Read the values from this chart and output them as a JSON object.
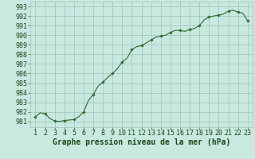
{
  "x": [
    1,
    1.5,
    2,
    2.5,
    3,
    3.5,
    4,
    4.5,
    5,
    5.5,
    6,
    6.5,
    7,
    7.5,
    8,
    8.5,
    9,
    9.5,
    10,
    10.5,
    11,
    11.5,
    12,
    12.5,
    13,
    13.5,
    14,
    14.5,
    15,
    15.5,
    16,
    16.5,
    17,
    17.5,
    18,
    18.5,
    19,
    19.5,
    20,
    20.5,
    21,
    21.5,
    22,
    22.5,
    23
  ],
  "y": [
    981.5,
    981.9,
    981.8,
    981.3,
    981.05,
    981.0,
    981.1,
    981.15,
    981.2,
    981.5,
    982.0,
    983.2,
    983.8,
    984.7,
    985.1,
    985.6,
    986.0,
    986.5,
    987.2,
    987.6,
    988.5,
    988.8,
    988.9,
    989.2,
    989.5,
    989.8,
    989.9,
    990.0,
    990.3,
    990.5,
    990.5,
    990.4,
    990.6,
    990.7,
    991.0,
    991.6,
    991.9,
    992.0,
    992.1,
    992.2,
    992.5,
    992.6,
    992.4,
    992.3,
    991.5
  ],
  "x_markers": [
    1,
    2,
    3,
    4,
    5,
    6,
    7,
    8,
    9,
    10,
    11,
    12,
    13,
    14,
    15,
    16,
    17,
    18,
    19,
    20,
    21,
    22,
    23
  ],
  "y_markers": [
    981.5,
    981.8,
    981.05,
    981.1,
    981.2,
    982.0,
    983.8,
    985.1,
    986.0,
    987.2,
    988.5,
    988.9,
    989.5,
    989.9,
    990.3,
    990.5,
    990.6,
    991.0,
    991.9,
    992.1,
    992.5,
    992.4,
    991.5
  ],
  "line_color": "#2d6a2d",
  "marker_color": "#2d6a2d",
  "bg_color": "#c8e8e0",
  "grid_color": "#9ec4b8",
  "text_color": "#1a4a1a",
  "xlabel": "Graphe pression niveau de la mer (hPa)",
  "ylim": [
    980.4,
    993.5
  ],
  "yticks": [
    981,
    982,
    983,
    984,
    985,
    986,
    987,
    988,
    989,
    990,
    991,
    992,
    993
  ],
  "xticks": [
    1,
    2,
    3,
    4,
    5,
    6,
    7,
    8,
    9,
    10,
    11,
    12,
    13,
    14,
    15,
    16,
    17,
    18,
    19,
    20,
    21,
    22,
    23
  ],
  "xlim": [
    0.5,
    23.5
  ],
  "xlabel_fontsize": 7,
  "tick_fontsize": 6
}
